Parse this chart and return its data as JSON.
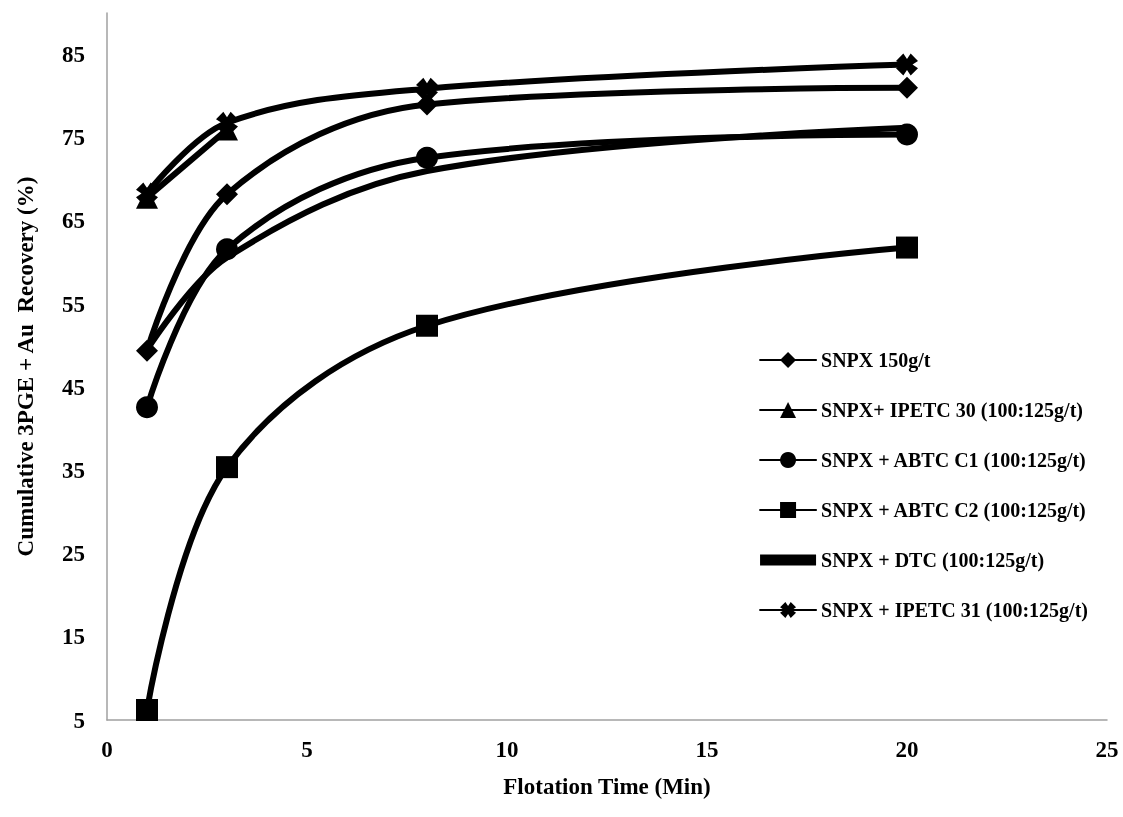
{
  "chart_data": {
    "type": "line",
    "xlabel": "Flotation Time (Min)",
    "ylabel": "Cumulative 3PGE + Au  Recovery (%)",
    "xlim": [
      0,
      25
    ],
    "xticks": [
      0,
      5,
      10,
      15,
      20,
      25
    ],
    "ylim": [
      5,
      90
    ],
    "yticks": [
      5,
      15,
      25,
      35,
      45,
      55,
      65,
      75,
      85
    ],
    "grid": false,
    "legend": "right",
    "line_style": "solid",
    "series": [
      {
        "name": "SNPX 150g/t",
        "color": "#000000",
        "marker": "diamond",
        "x": [
          1,
          3,
          8,
          20
        ],
        "values": [
          49.4,
          68.2,
          79.0,
          81.0
        ]
      },
      {
        "name": "SNPX+ IPETC 30 (100:125g/t)",
        "color": "#000000",
        "marker": "triangle",
        "x": [
          1,
          3
        ],
        "values": [
          67.8,
          76.0
        ]
      },
      {
        "name": "SNPX + ABTC C1 (100:125g/t)",
        "color": "#000000",
        "marker": "circle",
        "x": [
          1,
          3,
          8,
          20
        ],
        "values": [
          42.6,
          61.6,
          72.6,
          75.4
        ]
      },
      {
        "name": "SNPX + ABTC C2 (100:125g/t)",
        "color": "#000000",
        "marker": "square",
        "x": [
          1,
          3,
          8,
          20
        ],
        "values": [
          6.2,
          35.4,
          52.4,
          61.8
        ]
      },
      {
        "name": "SNPX + DTC (100:125g/t)",
        "color": "#000000",
        "marker": "none",
        "x": [
          1,
          3,
          8,
          20
        ],
        "values": [
          49.5,
          60.6,
          71.0,
          76.2
        ]
      },
      {
        "name": "SNPX + IPETC 31 (100:125g/t)",
        "color": "#000000",
        "marker": "cross",
        "x": [
          1,
          3,
          8,
          20
        ],
        "values": [
          68.3,
          76.8,
          80.9,
          83.8
        ]
      }
    ]
  }
}
